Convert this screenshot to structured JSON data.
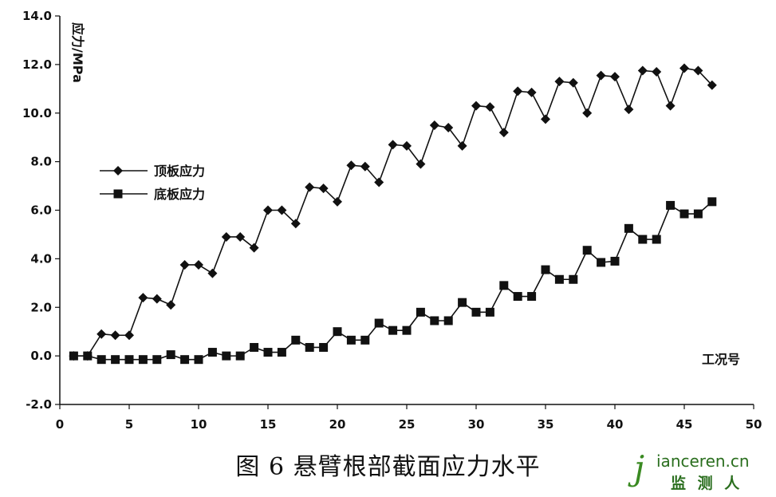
{
  "chart_data": {
    "type": "line",
    "caption": "图 6  悬臂根部截面应力水平",
    "xlabel": "工况号",
    "ylabel": "应力/MPa",
    "xlim": [
      0,
      50
    ],
    "ylim": [
      -2.0,
      14.0
    ],
    "x_ticks": [
      "0",
      "5",
      "10",
      "15",
      "20",
      "25",
      "30",
      "35",
      "40",
      "45",
      "50"
    ],
    "y_ticks": [
      "-2.0",
      "0.0",
      "2.0",
      "4.0",
      "6.0",
      "8.0",
      "10.0",
      "12.0",
      "14.0"
    ],
    "legend_position": "left",
    "grid": false,
    "x": [
      1,
      2,
      3,
      4,
      5,
      6,
      7,
      8,
      9,
      10,
      11,
      12,
      13,
      14,
      15,
      16,
      17,
      18,
      19,
      20,
      21,
      22,
      23,
      24,
      25,
      26,
      27,
      28,
      29,
      30,
      31,
      32,
      33,
      34,
      35,
      36,
      37,
      38,
      39,
      40,
      41,
      42,
      43,
      44,
      45,
      46,
      47
    ],
    "series": [
      {
        "name": "顶板应力",
        "marker": "diamond",
        "values": [
          0.0,
          0.0,
          0.9,
          0.85,
          0.85,
          2.4,
          2.35,
          2.1,
          3.75,
          3.75,
          3.4,
          4.9,
          4.9,
          4.45,
          6.0,
          6.0,
          5.45,
          6.95,
          6.9,
          6.35,
          7.85,
          7.8,
          7.15,
          8.7,
          8.65,
          7.9,
          9.5,
          9.4,
          8.65,
          10.3,
          10.25,
          9.2,
          10.9,
          10.85,
          9.75,
          11.3,
          11.25,
          10.0,
          11.55,
          11.5,
          10.15,
          11.75,
          11.7,
          10.3,
          11.85,
          11.75,
          11.15
        ]
      },
      {
        "name": "底板应力",
        "marker": "square",
        "values": [
          0.0,
          0.0,
          -0.15,
          -0.15,
          -0.15,
          -0.15,
          -0.15,
          0.05,
          -0.15,
          -0.15,
          0.15,
          0.0,
          0.0,
          0.35,
          0.15,
          0.15,
          0.65,
          0.35,
          0.35,
          1.0,
          0.65,
          0.65,
          1.35,
          1.05,
          1.05,
          1.8,
          1.45,
          1.45,
          2.2,
          1.8,
          1.8,
          2.9,
          2.45,
          2.45,
          3.55,
          3.15,
          3.15,
          4.35,
          3.85,
          3.9,
          5.25,
          4.8,
          4.8,
          6.2,
          5.85,
          5.85,
          6.35
        ]
      }
    ]
  },
  "watermark": {
    "initial": "j",
    "site": "ianceren.cn",
    "name": "监 测 人"
  }
}
